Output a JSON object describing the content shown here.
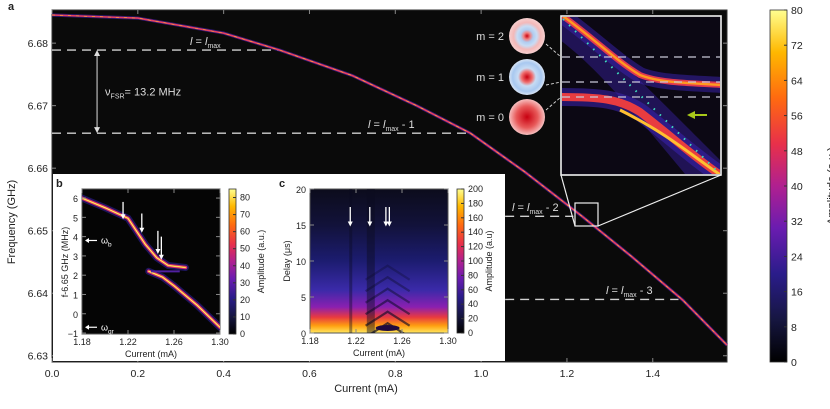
{
  "figure": {
    "panel_labels": [
      "a",
      "b",
      "c"
    ],
    "colors": {
      "background_plot": "#0a0a0a",
      "dashed_line": "#d0d0d0",
      "cyan_dots": "#40e0c0",
      "green_arrow": "#a8c81a"
    }
  },
  "chart_data": [
    {
      "id": "a",
      "type": "heatmap",
      "xlabel": "Current (mA)",
      "ylabel": "Frequency (GHz)",
      "xlim": [
        0,
        1.573
      ],
      "ylim": [
        6.629,
        6.6853
      ],
      "xticks": [
        0.0,
        0.2,
        0.4,
        0.6,
        0.8,
        1.0,
        1.2,
        1.4
      ],
      "xtick_labels": [
        "0.0",
        "0.2",
        "0.4",
        "0.6",
        "0.8",
        "1.0",
        "1.2",
        "1.4"
      ],
      "yticks": [
        6.63,
        6.64,
        6.65,
        6.66,
        6.67,
        6.68
      ],
      "ytick_labels": [
        "6.63",
        "6.64",
        "6.65",
        "6.66",
        "6.67",
        "6.68"
      ],
      "resonance_curve": [
        [
          0,
          6.6845
        ],
        [
          0.2,
          6.684
        ],
        [
          0.4,
          6.6816
        ],
        [
          0.53,
          6.6789
        ],
        [
          0.7,
          6.6748
        ],
        [
          0.85,
          6.67
        ],
        [
          0.975,
          6.6656
        ],
        [
          1.1,
          6.6595
        ],
        [
          1.235,
          6.6523
        ],
        [
          1.35,
          6.6459
        ],
        [
          1.47,
          6.6389
        ],
        [
          1.573,
          6.6317
        ]
      ],
      "mode_lines": [
        {
          "label_l": "l",
          "label_eq": " = ",
          "label_lmax": "l",
          "label_sub": "max",
          "label_suffix": "",
          "freq": 6.6789,
          "x_range": [
            0,
            0.53
          ]
        },
        {
          "label_l": "l",
          "label_eq": " = ",
          "label_lmax": "l",
          "label_sub": "max",
          "label_suffix": " - 1",
          "freq": 6.6656,
          "x_range": [
            0,
            0.975
          ]
        },
        {
          "label_l": "l",
          "label_eq": " = ",
          "label_lmax": "l",
          "label_sub": "max",
          "label_suffix": " - 2",
          "freq": 6.6523,
          "x_range": [
            1.056,
            1.215
          ]
        },
        {
          "label_l": "l",
          "label_eq": " = ",
          "label_lmax": "l",
          "label_sub": "max",
          "label_suffix": " - 3",
          "freq": 6.639,
          "x_range": [
            1.056,
            1.46
          ]
        }
      ],
      "fsr_annotation": {
        "symbol": "ν",
        "sub": "FSR",
        "text": "= 13.2 MHz",
        "from": 6.6789,
        "to": 6.6656,
        "at_current": 0.105
      },
      "colorbar": {
        "label": "Amplitude (a.u.)",
        "range": [
          0,
          80
        ],
        "ticks": [
          "0",
          "8",
          "16",
          "24",
          "32",
          "40",
          "48",
          "56",
          "64",
          "72",
          "80"
        ]
      },
      "zoom_box": {
        "x_range": [
          1.22,
          1.275
        ],
        "y_range": [
          6.6515,
          6.6553
        ]
      }
    },
    {
      "id": "b",
      "type": "heatmap",
      "xlabel": "Current (mA)",
      "ylabel": "f-6.65 GHz (MHz)",
      "xlim": [
        1.18,
        1.3
      ],
      "ylim": [
        -1.05,
        6.47
      ],
      "xticks": [
        1.18,
        1.22,
        1.26,
        1.3
      ],
      "xtick_labels": [
        "1.18",
        "1.22",
        "1.26",
        "1.30"
      ],
      "yticks": [
        -1,
        0,
        1,
        2,
        3,
        4,
        5,
        6
      ],
      "ytick_labels": [
        "−1",
        "0",
        "1",
        "2",
        "3",
        "4",
        "5",
        "6"
      ],
      "upper_branch": [
        [
          1.18,
          6.0
        ],
        [
          1.2,
          5.5
        ],
        [
          1.22,
          4.95
        ],
        [
          1.235,
          3.6
        ],
        [
          1.245,
          2.9
        ],
        [
          1.255,
          2.5
        ],
        [
          1.27,
          2.4
        ]
      ],
      "lower_branch": [
        [
          1.238,
          2.2
        ],
        [
          1.25,
          1.9
        ],
        [
          1.26,
          1.45
        ],
        [
          1.28,
          0.45
        ],
        [
          1.3,
          -0.7
        ]
      ],
      "arrows_current": [
        1.2157,
        1.232,
        1.246,
        1.249
      ],
      "side_labels": [
        {
          "symbol": "ω",
          "sub": "b",
          "value": 3.8
        },
        {
          "symbol": "ω",
          "sub": "qr",
          "value": -0.7
        }
      ],
      "colorbar": {
        "label": "Amplitude (a.u.)",
        "range": [
          0,
          85
        ],
        "ticks": [
          "0",
          "10",
          "20",
          "30",
          "40",
          "50",
          "60",
          "70",
          "80"
        ]
      }
    },
    {
      "id": "c",
      "type": "heatmap",
      "xlabel": "Current (mA)",
      "ylabel": "Delay (μs)",
      "xlim": [
        1.18,
        1.3
      ],
      "ylim": [
        0,
        20
      ],
      "xticks": [
        1.18,
        1.22,
        1.26,
        1.3
      ],
      "xtick_labels": [
        "1.18",
        "1.22",
        "1.26",
        "1.30"
      ],
      "yticks": [
        0,
        5,
        10,
        15,
        20
      ],
      "ytick_labels": [
        "0",
        "5",
        "10",
        "15",
        "20"
      ],
      "arrows_current": [
        1.215,
        1.232,
        1.246,
        1.249
      ],
      "colorbar": {
        "label": "Amplitude (a.u)",
        "range": [
          0,
          200
        ],
        "ticks": [
          "0",
          "20",
          "40",
          "60",
          "80",
          "100",
          "120",
          "140",
          "160",
          "180",
          "200"
        ]
      }
    },
    {
      "id": "a-zoom-inset",
      "type": "heatmap",
      "mode_profiles": [
        {
          "label": "m = 2"
        },
        {
          "label": "m = 1"
        },
        {
          "label": "m = 0"
        }
      ]
    }
  ]
}
